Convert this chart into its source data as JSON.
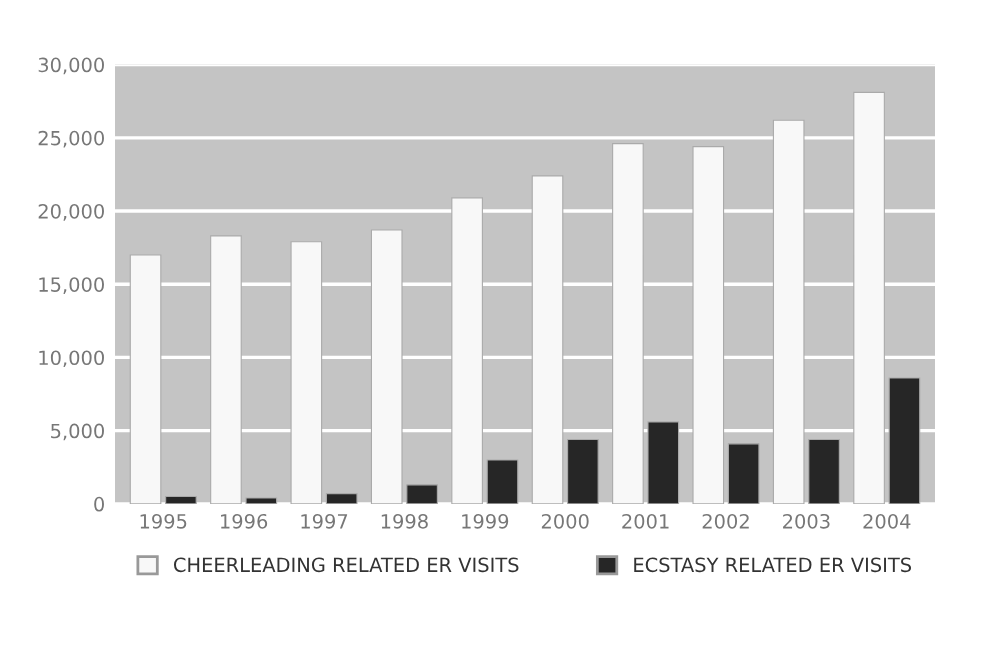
{
  "chart_data": {
    "type": "bar",
    "categories": [
      "1995",
      "1996",
      "1997",
      "1998",
      "1999",
      "2000",
      "2001",
      "2002",
      "2003",
      "2004"
    ],
    "series": [
      {
        "name": "CHEERLEADING RELATED ER VISITS",
        "color": "#f8f8f8",
        "values": [
          17000,
          18300,
          17900,
          18700,
          20900,
          22400,
          24600,
          24400,
          26200,
          28100
        ]
      },
      {
        "name": "ECSTASY RELATED ER VISITS",
        "color": "#262626",
        "values": [
          500,
          400,
          700,
          1300,
          3000,
          4400,
          5600,
          4100,
          4400,
          8600
        ]
      }
    ],
    "ylim": [
      0,
      30000
    ],
    "yticks": [
      {
        "value": 0,
        "label": "0"
      },
      {
        "value": 5000,
        "label": "5,000"
      },
      {
        "value": 10000,
        "label": "10,000"
      },
      {
        "value": 15000,
        "label": "15,000"
      },
      {
        "value": 20000,
        "label": "20,000"
      },
      {
        "value": 25000,
        "label": "25,000"
      },
      {
        "value": 30000,
        "label": "30,000"
      }
    ],
    "grid": "y",
    "legend": "bottom"
  }
}
